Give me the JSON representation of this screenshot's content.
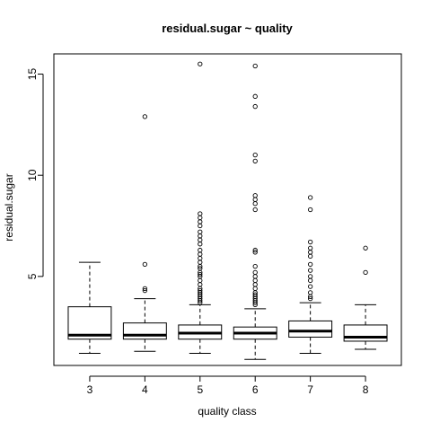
{
  "chart_data": {
    "type": "boxplot",
    "title": "residual.sugar ~ quality",
    "xlabel": "quality class",
    "ylabel": "residual.sugar",
    "ylim": [
      0.6,
      16.0
    ],
    "yticks": [
      5,
      10,
      15
    ],
    "categories": [
      "3",
      "4",
      "5",
      "6",
      "7",
      "8"
    ],
    "boxes": [
      {
        "category": "3",
        "whisker_low": 1.2,
        "q1": 1.9,
        "median": 2.1,
        "q3": 3.5,
        "whisker_high": 5.7,
        "outliers": []
      },
      {
        "category": "4",
        "whisker_low": 1.3,
        "q1": 1.9,
        "median": 2.1,
        "q3": 2.7,
        "whisker_high": 3.9,
        "outliers": [
          4.3,
          4.4,
          5.6,
          12.9
        ]
      },
      {
        "category": "5",
        "whisker_low": 1.2,
        "q1": 1.9,
        "median": 2.2,
        "q3": 2.6,
        "whisker_high": 3.6,
        "outliers": [
          3.7,
          3.8,
          3.9,
          4.0,
          4.1,
          4.2,
          4.3,
          4.4,
          4.6,
          4.8,
          5.0,
          5.1,
          5.2,
          5.4,
          5.5,
          5.7,
          5.9,
          6.1,
          6.3,
          6.6,
          6.8,
          7.0,
          7.2,
          7.5,
          7.7,
          7.9,
          8.1,
          15.5
        ]
      },
      {
        "category": "6",
        "whisker_low": 0.9,
        "q1": 1.9,
        "median": 2.2,
        "q3": 2.5,
        "whisker_high": 3.4,
        "outliers": [
          3.6,
          3.7,
          3.8,
          3.9,
          4.0,
          4.1,
          4.2,
          4.4,
          4.6,
          4.8,
          5.0,
          5.2,
          5.5,
          6.2,
          6.3,
          8.3,
          8.6,
          8.8,
          9.0,
          10.7,
          11.0,
          13.4,
          13.9,
          15.4
        ]
      },
      {
        "category": "7",
        "whisker_low": 1.2,
        "q1": 2.0,
        "median": 2.3,
        "q3": 2.8,
        "whisker_high": 3.7,
        "outliers": [
          3.9,
          4.0,
          4.2,
          4.5,
          4.8,
          5.0,
          5.3,
          5.6,
          6.0,
          6.2,
          6.4,
          6.7,
          8.3,
          8.9
        ]
      },
      {
        "category": "8",
        "whisker_low": 1.4,
        "q1": 1.8,
        "median": 2.0,
        "q3": 2.6,
        "whisker_high": 3.6,
        "outliers": [
          5.2,
          6.4
        ]
      }
    ],
    "grid": false,
    "legend": "none",
    "colors": {
      "box_fill": "#ffffff",
      "line": "#000000",
      "median": "#000000"
    }
  }
}
